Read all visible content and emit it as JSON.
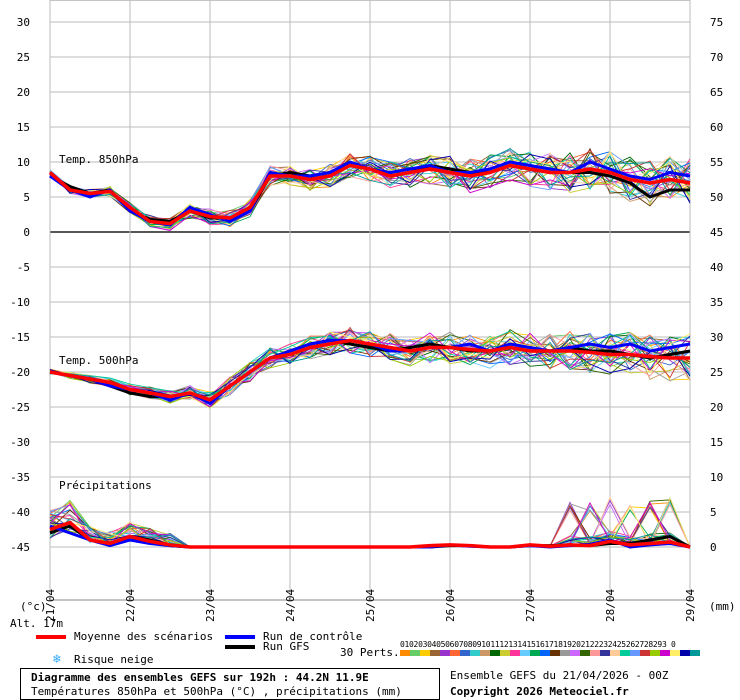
{
  "chart_data": {
    "type": "line",
    "title": "Diagramme des ensembles GEFS sur 192h : 44.2N 11.9E",
    "subtitle": "Températures 850hPa et 500hPa (°C) , précipitations (mm)",
    "run_info": "Ensemble GEFS du 21/04/2026 - 00Z",
    "copyright": "Copyright 2026 Meteociel.fr",
    "altitude": "Alt. 17m",
    "x_unit_left": "(°c)",
    "x_unit_right": "(mm)",
    "x_dates": [
      "21/04",
      "22/04",
      "23/04",
      "24/04",
      "25/04",
      "26/04",
      "27/04",
      "28/04",
      "29/04"
    ],
    "left_axis": {
      "ylim": [
        -45,
        30
      ],
      "ticks": [
        30,
        25,
        20,
        15,
        10,
        5,
        0,
        -5,
        -10,
        -15,
        -20,
        -25,
        -30,
        -35,
        -40,
        -45
      ]
    },
    "right_axis": {
      "ticks": [
        75,
        70,
        65,
        60,
        55,
        50,
        45,
        40,
        35,
        30,
        25,
        20,
        15,
        10,
        5,
        0
      ]
    },
    "panel_labels": {
      "t850": "Temp. 850hPa",
      "t500": "Temp. 500hPa",
      "precip": "Précipitations"
    },
    "x_hours": [
      0,
      6,
      12,
      18,
      24,
      30,
      36,
      42,
      48,
      54,
      60,
      66,
      72,
      78,
      84,
      90,
      96,
      102,
      108,
      114,
      120,
      126,
      132,
      138,
      144,
      150,
      156,
      162,
      168,
      174,
      180,
      186,
      192
    ],
    "series": [
      {
        "name": "Moyenne des scénarios",
        "color": "#ff0000",
        "width": 3.5,
        "t850": [
          8.5,
          6,
          5.5,
          5.8,
          3.5,
          1.5,
          1.2,
          3,
          2.2,
          2,
          3.5,
          8,
          8,
          7.5,
          8,
          9.5,
          9,
          8,
          8.5,
          9,
          8.5,
          8,
          8.5,
          9.5,
          9,
          8.5,
          8.5,
          9,
          8.5,
          7.5,
          7,
          7.5,
          7
        ],
        "t500": [
          -20,
          -20.5,
          -21,
          -21.5,
          -22.5,
          -23,
          -23.5,
          -23,
          -24,
          -22,
          -20,
          -18,
          -17.5,
          -16.5,
          -16,
          -15.5,
          -16,
          -16.5,
          -17,
          -16.5,
          -16.5,
          -16.8,
          -17,
          -16.5,
          -17,
          -17,
          -17,
          -17.2,
          -17.5,
          -17.5,
          -17.8,
          -18,
          -18
        ],
        "precip": [
          2.5,
          3.5,
          1,
          0.5,
          1.5,
          0.8,
          0.3,
          0,
          0,
          0,
          0,
          0,
          0,
          0,
          0,
          0,
          0,
          0,
          0,
          0.2,
          0.3,
          0.2,
          0,
          0,
          0.3,
          0.1,
          0.3,
          0.2,
          0.8,
          0.3,
          0.5,
          0.7,
          0
        ]
      },
      {
        "name": "Run de contrôle",
        "color": "#0000ff",
        "width": 3,
        "t850": [
          8,
          6,
          5,
          6,
          3,
          1.5,
          1,
          3.5,
          2.5,
          1.5,
          3,
          8.5,
          8,
          8,
          8.5,
          10,
          9,
          8.5,
          9,
          9.5,
          8.5,
          8.5,
          9,
          10,
          9.5,
          9,
          8.5,
          10,
          9,
          8,
          7.5,
          8.5,
          8
        ],
        "t500": [
          -20,
          -20.5,
          -21,
          -22,
          -22.5,
          -23,
          -24,
          -23,
          -24.5,
          -22,
          -20,
          -18,
          -17,
          -16,
          -15.5,
          -15.5,
          -16,
          -17,
          -17,
          -16.5,
          -16.5,
          -16,
          -17,
          -16,
          -16.5,
          -17,
          -16.5,
          -16,
          -16.5,
          -16,
          -17,
          -16.5,
          -16
        ],
        "precip": [
          3,
          2,
          1,
          0.2,
          1,
          0.5,
          0.2,
          0,
          0,
          0,
          0,
          0,
          0,
          0,
          0,
          0,
          0,
          0,
          0,
          0,
          0.3,
          0.1,
          0,
          0,
          0.2,
          0,
          0.2,
          0.4,
          1,
          0,
          0.3,
          0.5,
          0
        ]
      },
      {
        "name": "Run GFS",
        "color": "#000000",
        "width": 3,
        "t850": [
          8,
          6.5,
          5.5,
          6,
          3,
          1.8,
          1.5,
          3,
          2,
          2,
          3,
          8,
          8.5,
          8,
          8.5,
          9.5,
          9,
          8,
          8.5,
          9.5,
          9,
          8.5,
          8.5,
          9.5,
          9,
          8.5,
          8.5,
          8.5,
          8,
          7,
          5,
          6,
          6
        ],
        "t500": [
          -20,
          -20.5,
          -21,
          -22,
          -23,
          -23.5,
          -23.5,
          -23,
          -24,
          -22,
          -20,
          -18,
          -17,
          -16,
          -15.5,
          -16,
          -16.5,
          -17,
          -16.5,
          -16,
          -16.5,
          -17,
          -17,
          -16.5,
          -17,
          -17,
          -16.5,
          -17,
          -17,
          -17.5,
          -18,
          -17.5,
          -17
        ],
        "precip": [
          2,
          3,
          1,
          0.5,
          1.5,
          1,
          0.2,
          0,
          0,
          0,
          0,
          0,
          0,
          0,
          0,
          0,
          0,
          0,
          0,
          0,
          0.2,
          0.2,
          0,
          0,
          0.2,
          0.2,
          0.3,
          0.2,
          0.5,
          0.5,
          1,
          1.5,
          0
        ]
      }
    ],
    "perturbation_spread": {
      "colors": [
        "#ff8c00",
        "#66cc66",
        "#ffcc00",
        "#996633",
        "#9933cc",
        "#ff6633",
        "#3366cc",
        "#33cccc",
        "#cc9966",
        "#006600",
        "#cccc33",
        "#ff3399",
        "#66ccff",
        "#00aa55",
        "#0066ff",
        "#663300",
        "#999999",
        "#cc66ff",
        "#336600",
        "#ff9999",
        "#333399",
        "#ffcc99",
        "#00cc99",
        "#6699ff",
        "#cc3333",
        "#99cc00",
        "#cc00cc",
        "#ffee66",
        "#0000aa",
        "#009999"
      ]
    }
  },
  "legend": {
    "mean_label": "Moyenne des scénarios",
    "control_label": "Run de contrôle",
    "gfs_label": "Run GFS",
    "snow_label": "Risque neige",
    "snow_icon": "snowflake-icon",
    "perts_label": "30 Perts.",
    "perts_numbers": "01020304050607080910111213141516171819202122232425262728293 0",
    "mean_color": "#ff0000",
    "control_color": "#0000ff",
    "gfs_color": "#000000",
    "snow_color": "#33aaff"
  }
}
